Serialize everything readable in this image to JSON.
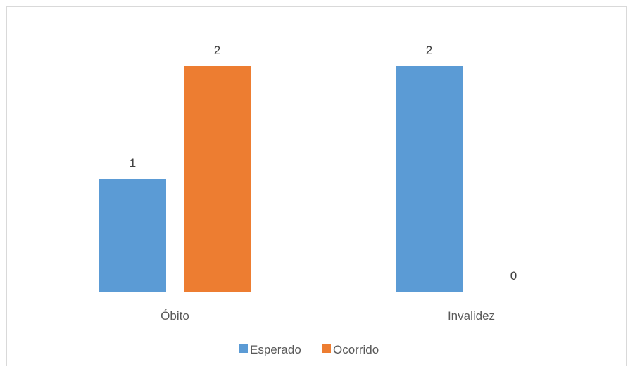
{
  "chart_data": {
    "type": "bar",
    "categories": [
      "Óbito",
      "Invalidez"
    ],
    "series": [
      {
        "name": "Esperado",
        "values": [
          1,
          2
        ],
        "color": "#5B9BD5"
      },
      {
        "name": "Ocorrido",
        "values": [
          2,
          0
        ],
        "color": "#ED7D31"
      }
    ],
    "title": "",
    "xlabel": "",
    "ylabel": "",
    "ylim": [
      0,
      2.4
    ],
    "grid": false,
    "y_axis_visible": false,
    "data_labels": true,
    "legend": "bottom"
  }
}
